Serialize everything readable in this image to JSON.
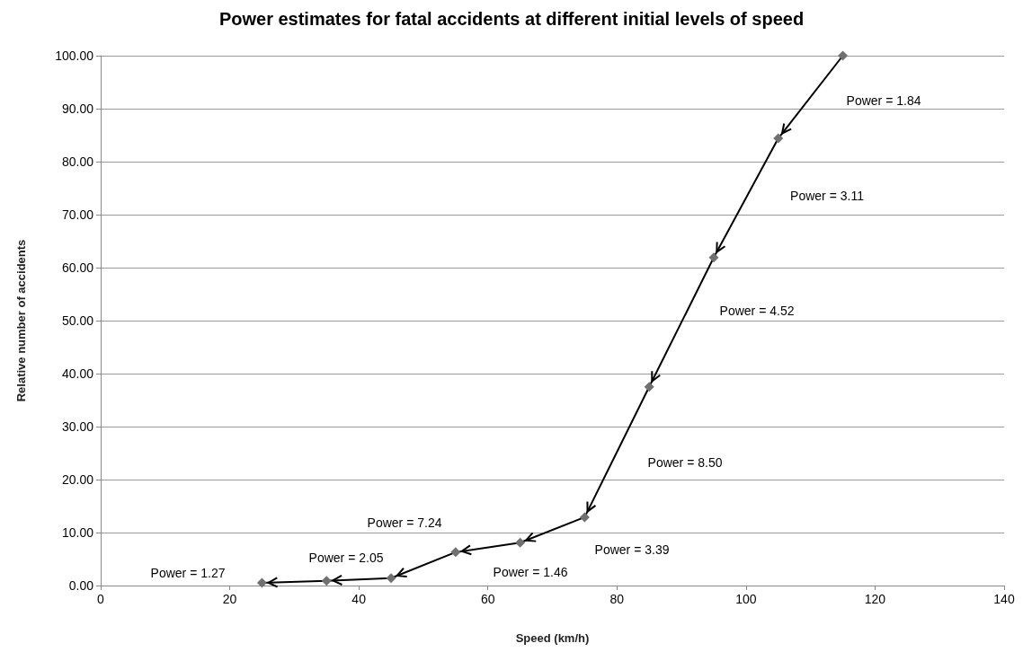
{
  "chart_data": {
    "type": "line",
    "title": "Power estimates for fatal accidents at different initial levels of speed",
    "xlabel": "Speed (km/h)",
    "ylabel": "Relative number of accidents",
    "x": [
      25,
      35,
      45,
      55,
      65,
      75,
      85,
      95,
      105,
      115
    ],
    "series": [
      {
        "color": "#707070",
        "values": [
          0.5,
          0.9,
          1.4,
          6.3,
          8.1,
          12.9,
          37.5,
          61.9,
          84.4,
          100
        ]
      }
    ],
    "xlim": [
      0,
      140
    ],
    "xticks": [
      0,
      20,
      40,
      60,
      80,
      100,
      120,
      140
    ],
    "ylim": [
      0,
      100
    ],
    "yticks": [
      {
        "value": 0,
        "label": "0.00"
      },
      {
        "value": 10,
        "label": "10.00"
      },
      {
        "value": 20,
        "label": "20.00"
      },
      {
        "value": 30,
        "label": "30.00"
      },
      {
        "value": 40,
        "label": "40.00"
      },
      {
        "value": 50,
        "label": "50.00"
      },
      {
        "value": 60,
        "label": "60.00"
      },
      {
        "value": 70,
        "label": "70.00"
      },
      {
        "value": 80,
        "label": "80.00"
      },
      {
        "value": 90,
        "label": "90.00"
      },
      {
        "value": 100,
        "label": "100.00"
      }
    ],
    "grid": "y",
    "marker": "diamond",
    "line_style": "solid",
    "annotations": [
      "Power = 1.84",
      "Power = 3.11",
      "Power = 4.52",
      "Power = 8.50",
      "Power = 3.39",
      "Power = 7.24",
      "Power = 1.46",
      "Power = 2.05",
      "Power = 1.27"
    ]
  }
}
